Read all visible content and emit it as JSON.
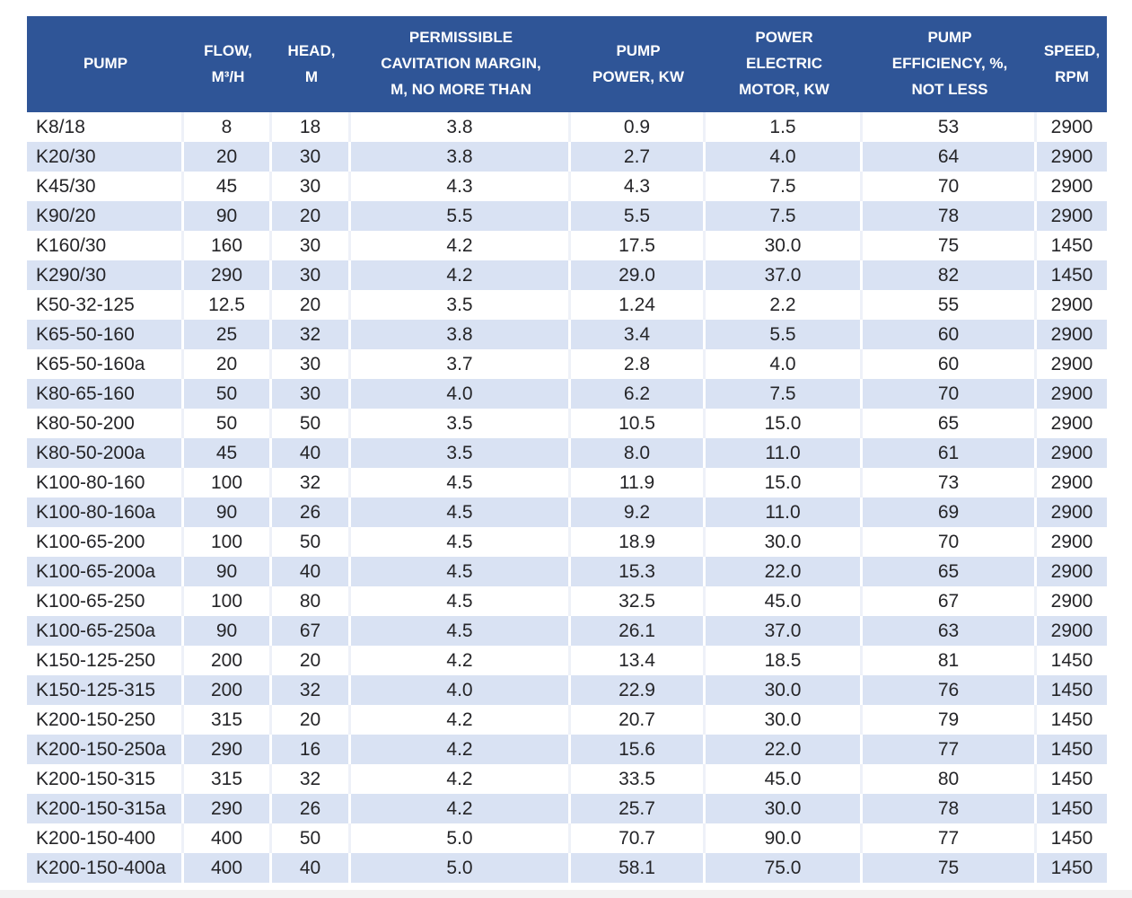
{
  "chart_data": {
    "type": "table",
    "columns": [
      {
        "key": "pump",
        "label": "PUMP"
      },
      {
        "key": "flow",
        "label": "FLOW,\nM³/H"
      },
      {
        "key": "head",
        "label": "HEAD,\nM"
      },
      {
        "key": "cavitation",
        "label": "PERMISSIBLE\nCAVITATION MARGIN,\nM, NO MORE THAN"
      },
      {
        "key": "pump_power",
        "label": "PUMP\nPOWER, KW"
      },
      {
        "key": "motor_power",
        "label": "POWER\nELECTRIC\nMOTOR, KW"
      },
      {
        "key": "efficiency",
        "label": "PUMP\nEFFICIENCY, %,\nNOT LESS"
      },
      {
        "key": "speed",
        "label": "SPEED,\nRPM"
      }
    ],
    "rows": [
      [
        "K8/18",
        "8",
        "18",
        "3.8",
        "0.9",
        "1.5",
        "53",
        "2900"
      ],
      [
        "K20/30",
        "20",
        "30",
        "3.8",
        "2.7",
        "4.0",
        "64",
        "2900"
      ],
      [
        "K45/30",
        "45",
        "30",
        "4.3",
        "4.3",
        "7.5",
        "70",
        "2900"
      ],
      [
        "K90/20",
        "90",
        "20",
        "5.5",
        "5.5",
        "7.5",
        "78",
        "2900"
      ],
      [
        "K160/30",
        "160",
        "30",
        "4.2",
        "17.5",
        "30.0",
        "75",
        "1450"
      ],
      [
        "K290/30",
        "290",
        "30",
        "4.2",
        "29.0",
        "37.0",
        "82",
        "1450"
      ],
      [
        "K50-32-125",
        "12.5",
        "20",
        "3.5",
        "1.24",
        "2.2",
        "55",
        "2900"
      ],
      [
        "K65-50-160",
        "25",
        "32",
        "3.8",
        "3.4",
        "5.5",
        "60",
        "2900"
      ],
      [
        "K65-50-160a",
        "20",
        "30",
        "3.7",
        "2.8",
        "4.0",
        "60",
        "2900"
      ],
      [
        "K80-65-160",
        "50",
        "30",
        "4.0",
        "6.2",
        "7.5",
        "70",
        "2900"
      ],
      [
        "K80-50-200",
        "50",
        "50",
        "3.5",
        "10.5",
        "15.0",
        "65",
        "2900"
      ],
      [
        "K80-50-200a",
        "45",
        "40",
        "3.5",
        "8.0",
        "11.0",
        "61",
        "2900"
      ],
      [
        "K100-80-160",
        "100",
        "32",
        "4.5",
        "11.9",
        "15.0",
        "73",
        "2900"
      ],
      [
        "K100-80-160a",
        "90",
        "26",
        "4.5",
        "9.2",
        "11.0",
        "69",
        "2900"
      ],
      [
        "K100-65-200",
        "100",
        "50",
        "4.5",
        "18.9",
        "30.0",
        "70",
        "2900"
      ],
      [
        "K100-65-200a",
        "90",
        "40",
        "4.5",
        "15.3",
        "22.0",
        "65",
        "2900"
      ],
      [
        "K100-65-250",
        "100",
        "80",
        "4.5",
        "32.5",
        "45.0",
        "67",
        "2900"
      ],
      [
        "K100-65-250a",
        "90",
        "67",
        "4.5",
        "26.1",
        "37.0",
        "63",
        "2900"
      ],
      [
        "K150-125-250",
        "200",
        "20",
        "4.2",
        "13.4",
        "18.5",
        "81",
        "1450"
      ],
      [
        "K150-125-315",
        "200",
        "32",
        "4.0",
        "22.9",
        "30.0",
        "76",
        "1450"
      ],
      [
        "K200-150-250",
        "315",
        "20",
        "4.2",
        "20.7",
        "30.0",
        "79",
        "1450"
      ],
      [
        "K200-150-250a",
        "290",
        "16",
        "4.2",
        "15.6",
        "22.0",
        "77",
        "1450"
      ],
      [
        "K200-150-315",
        "315",
        "32",
        "4.2",
        "33.5",
        "45.0",
        "80",
        "1450"
      ],
      [
        "K200-150-315a",
        "290",
        "26",
        "4.2",
        "25.7",
        "30.0",
        "78",
        "1450"
      ],
      [
        "K200-150-400",
        "400",
        "50",
        "5.0",
        "70.7",
        "90.0",
        "77",
        "1450"
      ],
      [
        "K200-150-400a",
        "400",
        "40",
        "5.0",
        "58.1",
        "75.0",
        "75",
        "1450"
      ]
    ]
  },
  "colors": {
    "header_bg": "#2f5597",
    "header_text": "#ffffff",
    "stripe_bg": "#d9e2f3",
    "row_bg": "#ffffff",
    "body_text": "#252528"
  }
}
